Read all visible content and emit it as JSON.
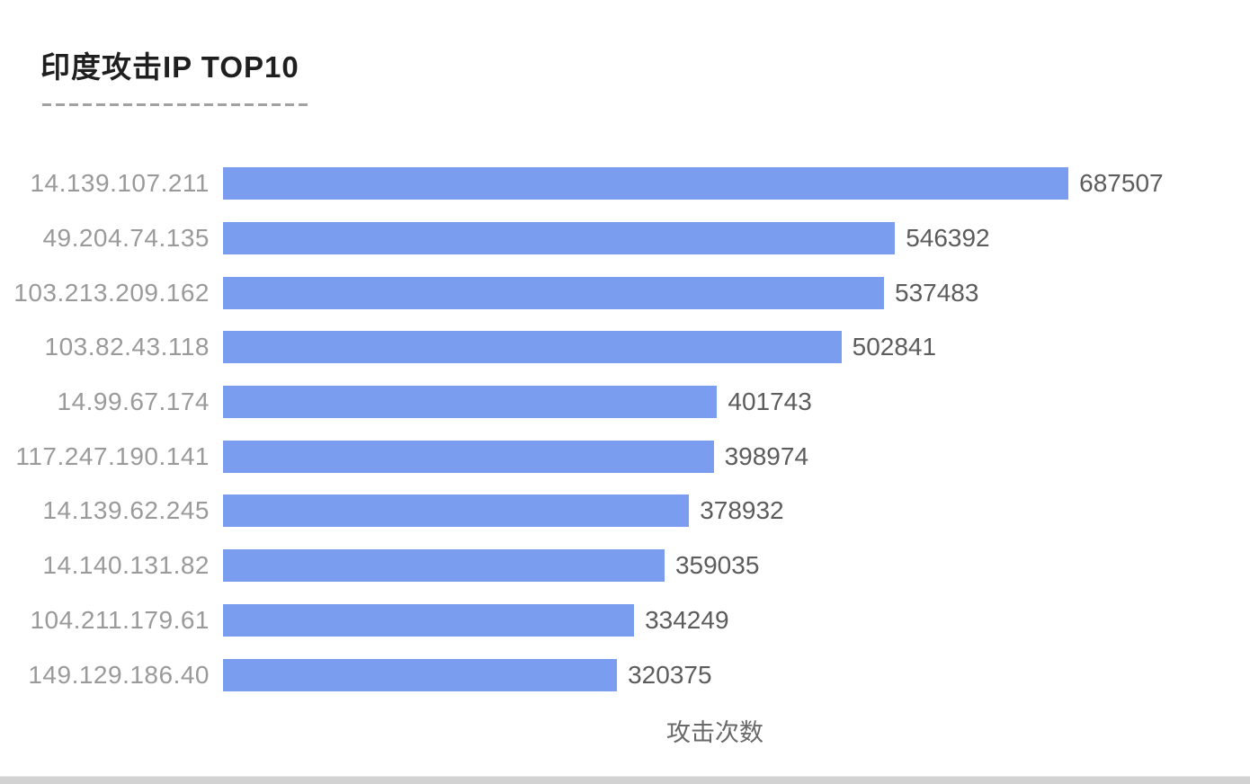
{
  "header": {
    "title": "印度攻击IP TOP10"
  },
  "chart_data": {
    "type": "bar",
    "orientation": "horizontal",
    "title": "印度攻击IP TOP10",
    "categories": [
      "14.139.107.211",
      "49.204.74.135",
      "103.213.209.162",
      "103.82.43.118",
      "14.99.67.174",
      "117.247.190.141",
      "14.139.62.245",
      "14.140.131.82",
      "104.211.179.61",
      "149.129.186.40"
    ],
    "values": [
      687507,
      546392,
      537483,
      502841,
      401743,
      398974,
      378932,
      359035,
      334249,
      320375
    ],
    "xlabel": "攻击次数",
    "ylabel": "",
    "xlim": [
      0,
      800000
    ],
    "grid": false,
    "legend": false,
    "bar_color": "#7b9df0",
    "category_label_color": "#9a9a9a",
    "value_label_color": "#5c5c5c",
    "title_color": "#1f1f1f",
    "axis_label_color": "#696969"
  }
}
